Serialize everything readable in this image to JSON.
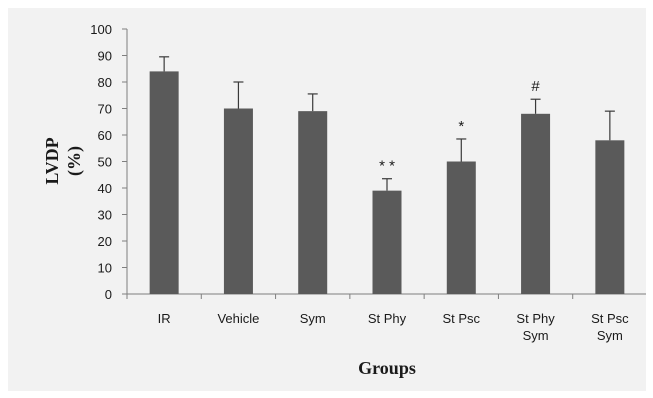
{
  "chart_data": {
    "type": "bar",
    "categories": [
      [
        "IR"
      ],
      [
        "Vehicle"
      ],
      [
        "Sym"
      ],
      [
        "St Phy"
      ],
      [
        "St Psc"
      ],
      [
        "St Phy",
        "Sym"
      ],
      [
        "St Psc",
        "Sym"
      ]
    ],
    "values": [
      84,
      70,
      69,
      39,
      50,
      68,
      58
    ],
    "errors": [
      5.5,
      10,
      6.5,
      4.5,
      8.5,
      5.5,
      11
    ],
    "annotations": [
      "",
      "",
      "",
      "* *",
      "*",
      "#",
      ""
    ],
    "xlabel": "Groups",
    "ylabel": [
      "LVDP",
      "(%)"
    ],
    "ylim": [
      0,
      100
    ],
    "yticks": [
      0,
      10,
      20,
      30,
      40,
      50,
      60,
      70,
      80,
      90,
      100
    ],
    "bar_color": "#5a5a5a",
    "grid": false,
    "legend": "none"
  }
}
